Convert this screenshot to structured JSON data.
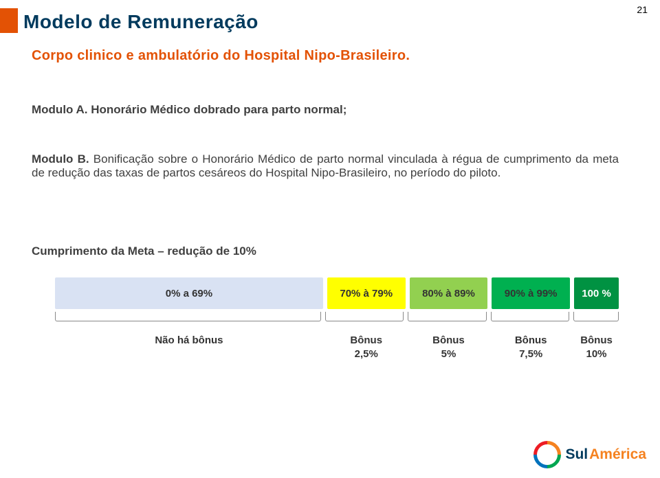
{
  "page_number": "21",
  "top_bar_color": "#e35205",
  "title": {
    "text": "Modelo de Remuneração",
    "color": "#003a5d"
  },
  "subtitle": {
    "text": "Corpo clinico e ambulatório do Hospital Nipo-Brasileiro.",
    "color": "#e35205"
  },
  "modulo_a": {
    "prefix": "Modulo A. ",
    "text": "Honorário Médico dobrado para parto normal;",
    "color": "#404040"
  },
  "modulo_b": {
    "prefix": "Modulo B. ",
    "text": "Bonificação sobre o Honorário Médico de parto normal vinculada à régua de cumprimento da meta de redução das taxas de partos cesáreos do Hospital Nipo-Brasileiro, no período do piloto.",
    "color": "#404040"
  },
  "meta_label": {
    "text": "Cumprimento da Meta – redução de 10%",
    "color": "#404040"
  },
  "ruler": {
    "segments": [
      {
        "label": "0% a 69%",
        "color": "#d9e2f3",
        "flex": 48
      },
      {
        "label": "70% à 79%",
        "color": "#ffff00",
        "flex": 14
      },
      {
        "label": "80% à 89%",
        "color": "#92d050",
        "flex": 14
      },
      {
        "label": "90% à 99%",
        "color": "#00b050",
        "flex": 14
      },
      {
        "label": "100 %",
        "color": "#009242",
        "flex": 8
      }
    ]
  },
  "bonus": {
    "cells": [
      {
        "line1": "Não há bônus",
        "line2": "",
        "flex": 48
      },
      {
        "line1": "Bônus",
        "line2": "2,5%",
        "flex": 14
      },
      {
        "line1": "Bônus",
        "line2": "5%",
        "flex": 14
      },
      {
        "line1": "Bônus",
        "line2": "7,5%",
        "flex": 14
      },
      {
        "line1": "Bônus",
        "line2": "10%",
        "flex": 8
      }
    ]
  },
  "logo": {
    "parts": [
      {
        "text": "Sul",
        "color": "#003a5d"
      },
      {
        "text": "América",
        "color": "#f58220"
      }
    ]
  }
}
